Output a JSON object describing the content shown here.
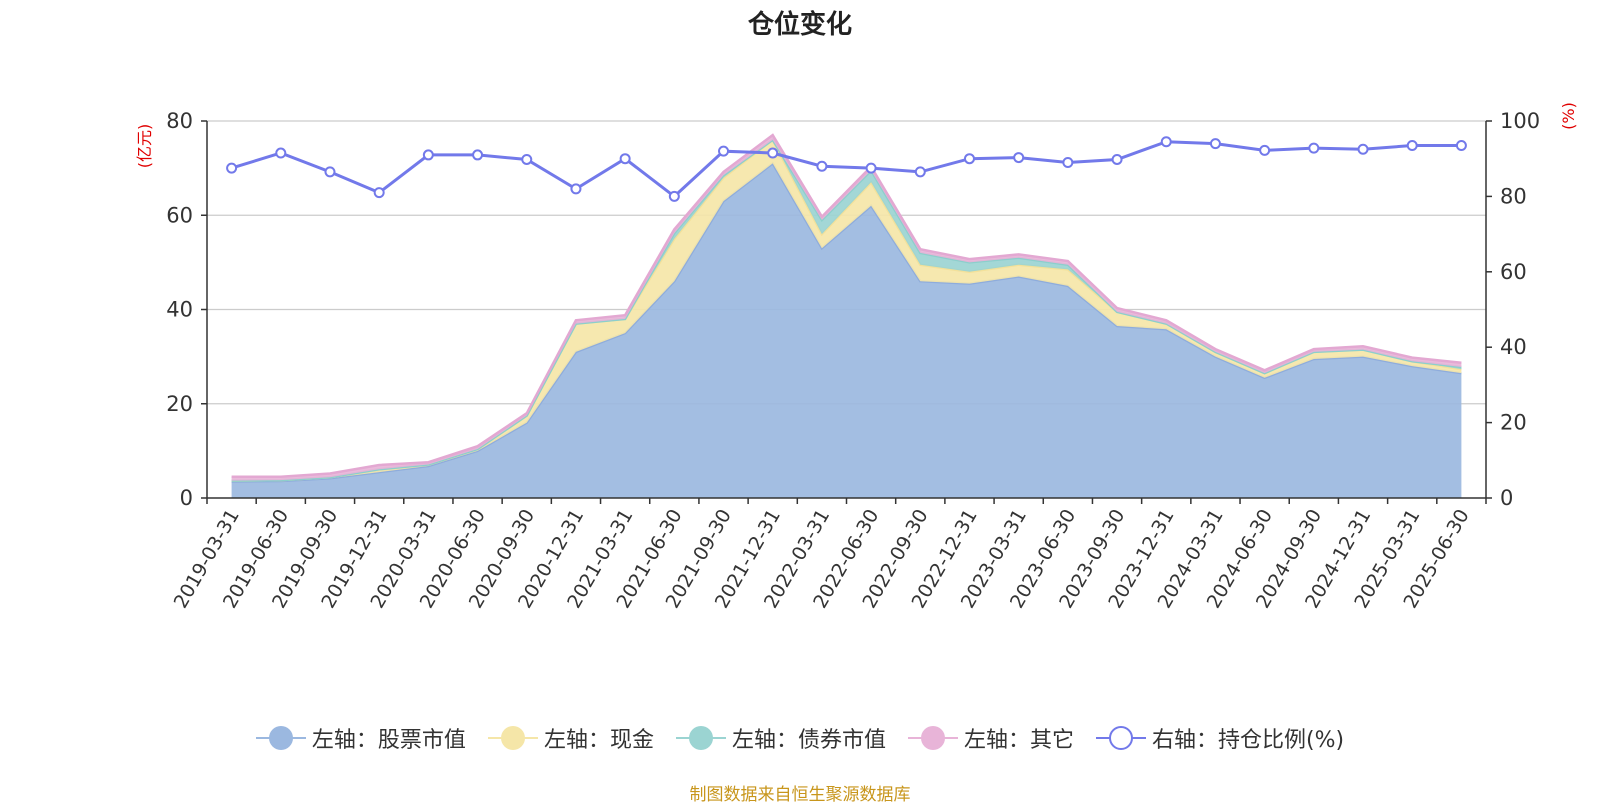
{
  "chart_data": {
    "type": "area",
    "title": "仓位变化",
    "left_axis_unit": "(亿元)",
    "right_axis_unit": "(%)",
    "left_ylim": [
      0,
      80
    ],
    "left_ticks": [
      0,
      20,
      40,
      60,
      80
    ],
    "right_ylim": [
      0,
      100
    ],
    "right_ticks": [
      0,
      20,
      40,
      60,
      80,
      100
    ],
    "grid": true,
    "legend_position": "bottom",
    "stacked": true,
    "x": [
      "2019-03-31",
      "2019-06-30",
      "2019-09-30",
      "2019-12-31",
      "2020-03-31",
      "2020-06-30",
      "2020-09-30",
      "2020-12-31",
      "2021-03-31",
      "2021-06-30",
      "2021-09-30",
      "2021-12-31",
      "2022-03-31",
      "2022-06-30",
      "2022-09-30",
      "2022-12-31",
      "2023-03-31",
      "2023-06-30",
      "2023-09-30",
      "2023-12-31",
      "2024-03-31",
      "2024-06-30",
      "2024-09-30",
      "2024-12-31",
      "2025-03-31",
      "2025-06-30"
    ],
    "series": [
      {
        "name": "左轴：股票市值",
        "axis": "left",
        "kind": "area",
        "color": "#9bb8e0",
        "values": [
          3.5,
          3.6,
          4.2,
          5.5,
          6.8,
          10.0,
          16.0,
          31.0,
          35.0,
          46.0,
          63.0,
          71.0,
          53.0,
          62.0,
          46.0,
          45.5,
          47.0,
          45.0,
          36.5,
          35.8,
          30.0,
          25.5,
          29.5,
          30.0,
          28.0,
          26.5
        ]
      },
      {
        "name": "左轴：现金",
        "axis": "left",
        "kind": "area",
        "color": "#f5e6a8",
        "values": [
          0.2,
          0.2,
          0.2,
          0.6,
          0.3,
          0.4,
          1.5,
          6.0,
          3.0,
          9.0,
          5.0,
          5.0,
          3.0,
          5.0,
          3.5,
          2.5,
          2.5,
          3.5,
          3.0,
          1.2,
          1.0,
          1.0,
          1.5,
          1.5,
          1.0,
          0.8
        ]
      },
      {
        "name": "左轴：债券市值",
        "axis": "left",
        "kind": "area",
        "color": "#9bd4d2",
        "values": [
          0.0,
          0.0,
          0.0,
          0.0,
          0.0,
          0.0,
          0.0,
          0.0,
          0.0,
          1.2,
          0.5,
          0.0,
          3.0,
          2.5,
          2.5,
          2.0,
          1.5,
          1.0,
          0.0,
          0.0,
          0.0,
          0.0,
          0.0,
          0.0,
          0.0,
          0.5
        ]
      },
      {
        "name": "左轴：其它",
        "axis": "left",
        "kind": "area",
        "color": "#e8b4d8",
        "values": [
          0.8,
          0.7,
          0.8,
          0.9,
          0.5,
          0.6,
          0.5,
          0.7,
          0.8,
          0.8,
          0.7,
          1.0,
          0.7,
          0.8,
          0.8,
          0.7,
          0.7,
          0.8,
          0.8,
          0.7,
          0.6,
          0.6,
          0.6,
          0.7,
          0.8,
          0.9
        ]
      },
      {
        "name": "右轴：持仓比例(%)",
        "axis": "right",
        "kind": "line",
        "color": "#7279ea",
        "values": [
          87.5,
          91.5,
          86.5,
          81,
          91,
          91,
          89.8,
          82,
          90,
          80,
          92,
          91.5,
          88,
          87.5,
          86.5,
          90,
          90.3,
          89,
          89.8,
          94.5,
          94,
          92.2,
          92.8,
          92.5,
          93.5,
          93.5
        ]
      }
    ]
  },
  "source_note": "制图数据来自恒生聚源数据库"
}
